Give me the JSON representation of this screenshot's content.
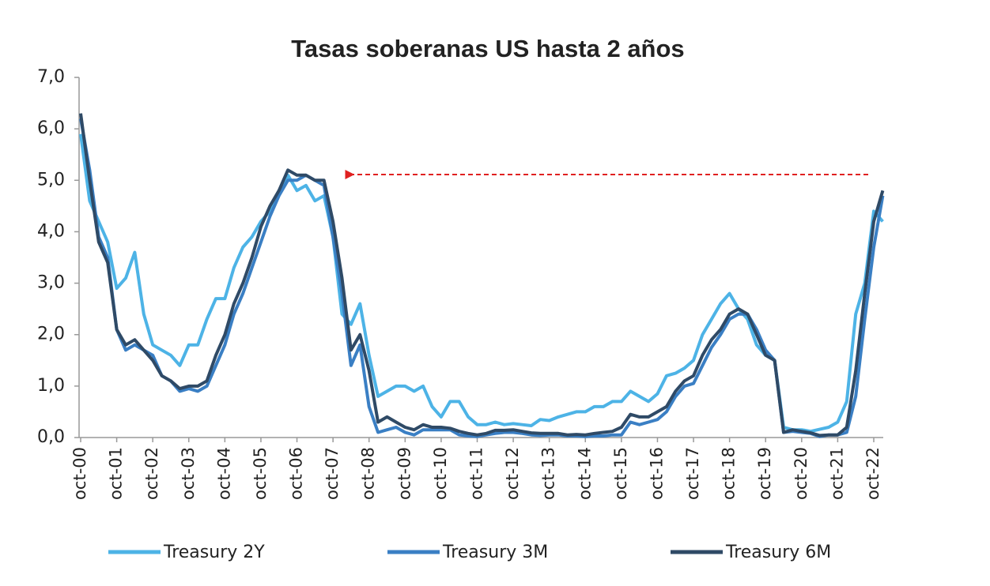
{
  "chart_data": {
    "type": "line",
    "title": "Tasas soberanas US hasta 2 años",
    "categories": [
      "oct-00",
      null,
      null,
      null,
      "oct-01",
      null,
      null,
      null,
      "oct-02",
      null,
      null,
      null,
      "oct-03",
      null,
      null,
      null,
      "oct-04",
      null,
      null,
      null,
      "oct-05",
      null,
      null,
      null,
      "oct-06",
      null,
      null,
      null,
      "oct-07",
      null,
      null,
      null,
      "oct-08",
      null,
      null,
      null,
      "oct-09",
      null,
      null,
      null,
      "oct-10",
      null,
      null,
      null,
      "oct-11",
      null,
      null,
      null,
      "oct-12",
      null,
      null,
      null,
      "oct-13",
      null,
      null,
      null,
      "oct-14",
      null,
      null,
      null,
      "oct-15",
      null,
      null,
      null,
      "oct-16",
      null,
      null,
      null,
      "oct-17",
      null,
      null,
      null,
      "oct-18",
      null,
      null,
      null,
      "oct-19",
      null,
      null,
      null,
      "oct-20",
      null,
      null,
      null,
      "oct-21",
      null,
      null,
      null,
      "oct-22",
      null
    ],
    "series": [
      {
        "name": "Treasury 2Y",
        "color": "#4db3e6",
        "values": [
          5.9,
          4.6,
          4.2,
          3.8,
          2.9,
          3.1,
          3.6,
          2.4,
          1.8,
          1.7,
          1.6,
          1.4,
          1.8,
          1.8,
          2.3,
          2.7,
          2.7,
          3.3,
          3.7,
          3.9,
          4.2,
          4.4,
          4.8,
          5.1,
          4.8,
          4.9,
          4.6,
          4.7,
          3.9,
          2.4,
          2.2,
          2.6,
          1.6,
          0.8,
          0.9,
          1.0,
          1.0,
          0.9,
          1.0,
          0.6,
          0.4,
          0.7,
          0.7,
          0.4,
          0.25,
          0.25,
          0.3,
          0.25,
          0.27,
          0.25,
          0.23,
          0.35,
          0.33,
          0.4,
          0.45,
          0.5,
          0.5,
          0.6,
          0.6,
          0.7,
          0.7,
          0.9,
          0.8,
          0.7,
          0.85,
          1.2,
          1.25,
          1.35,
          1.5,
          2.0,
          2.3,
          2.6,
          2.8,
          2.5,
          2.3,
          1.8,
          1.6,
          1.5,
          0.2,
          0.15,
          0.15,
          0.12,
          0.16,
          0.2,
          0.3,
          0.7,
          2.4,
          3.0,
          4.4,
          4.2
        ]
      },
      {
        "name": "Treasury 3M",
        "color": "#3a7fc4",
        "values": [
          6.2,
          5.2,
          3.9,
          3.5,
          2.1,
          1.7,
          1.8,
          1.7,
          1.6,
          1.2,
          1.1,
          0.9,
          0.95,
          0.9,
          1.0,
          1.4,
          1.8,
          2.4,
          2.8,
          3.3,
          3.8,
          4.3,
          4.7,
          5.0,
          5.0,
          5.1,
          5.0,
          4.9,
          3.9,
          2.8,
          1.4,
          1.8,
          0.6,
          0.1,
          0.15,
          0.2,
          0.1,
          0.05,
          0.15,
          0.15,
          0.15,
          0.15,
          0.05,
          0.03,
          0.02,
          0.05,
          0.08,
          0.1,
          0.1,
          0.08,
          0.05,
          0.04,
          0.05,
          0.05,
          0.03,
          0.03,
          0.02,
          0.03,
          0.03,
          0.05,
          0.05,
          0.3,
          0.25,
          0.3,
          0.35,
          0.5,
          0.8,
          1.0,
          1.05,
          1.4,
          1.75,
          2.0,
          2.3,
          2.4,
          2.4,
          2.1,
          1.7,
          1.5,
          0.1,
          0.12,
          0.1,
          0.08,
          0.02,
          0.05,
          0.05,
          0.1,
          0.8,
          2.3,
          3.7,
          4.7
        ]
      },
      {
        "name": "Treasury 6M",
        "color": "#2f4a66",
        "values": [
          6.3,
          5.0,
          3.8,
          3.4,
          2.1,
          1.8,
          1.9,
          1.7,
          1.5,
          1.2,
          1.1,
          0.95,
          1.0,
          1.0,
          1.1,
          1.6,
          2.0,
          2.6,
          3.0,
          3.5,
          4.1,
          4.5,
          4.8,
          5.2,
          5.1,
          5.1,
          5.0,
          5.0,
          4.2,
          3.1,
          1.7,
          2.0,
          1.3,
          0.3,
          0.4,
          0.3,
          0.2,
          0.15,
          0.25,
          0.2,
          0.2,
          0.18,
          0.12,
          0.08,
          0.05,
          0.08,
          0.14,
          0.14,
          0.15,
          0.12,
          0.09,
          0.08,
          0.08,
          0.08,
          0.05,
          0.06,
          0.05,
          0.08,
          0.1,
          0.12,
          0.2,
          0.45,
          0.4,
          0.4,
          0.5,
          0.6,
          0.9,
          1.1,
          1.2,
          1.6,
          1.9,
          2.1,
          2.4,
          2.5,
          2.4,
          2.0,
          1.6,
          1.5,
          0.1,
          0.15,
          0.12,
          0.09,
          0.04,
          0.05,
          0.05,
          0.2,
          1.3,
          2.8,
          4.2,
          4.8
        ]
      }
    ],
    "ylim": [
      0,
      7
    ],
    "yticks": [
      {
        "value": 0,
        "label": "0,0"
      },
      {
        "value": 1,
        "label": "1,0"
      },
      {
        "value": 2,
        "label": "2,0"
      },
      {
        "value": 3,
        "label": "3,0"
      },
      {
        "value": 4,
        "label": "4,0"
      },
      {
        "value": 5,
        "label": "5,0"
      },
      {
        "value": 6,
        "label": "6,0"
      },
      {
        "value": 7,
        "label": "7,0"
      }
    ],
    "legend": "bottom"
  }
}
